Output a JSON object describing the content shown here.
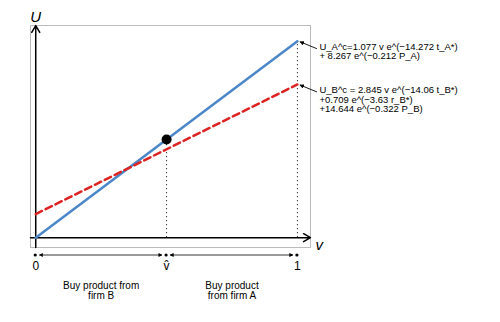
{
  "chart_data": {
    "type": "line",
    "xlabel": "v",
    "ylabel": "U",
    "x": [
      0,
      1.0
    ],
    "series": [
      {
        "color": "#4a86c8",
        "line_style": "solid",
        "values": [
          0.0,
          1.0
        ]
      },
      {
        "color": "#dd2222",
        "line_style": "dashed",
        "values": [
          0.12,
          0.78
        ]
      }
    ],
    "points": [
      {
        "x": 0.5,
        "y": 0.5,
        "color": "black"
      }
    ],
    "guides": [
      {
        "x": 0.5,
        "y": 0.5,
        "line_style": "dotted"
      },
      {
        "x": 1.0,
        "y": 1.0,
        "line_style": "dotted"
      }
    ],
    "xlim": [
      -0.02,
      1.05
    ],
    "ylim": [
      -0.05,
      1.08
    ],
    "xticks": [
      0,
      {
        "value": 0.5,
        "label": "v̂"
      },
      1
    ],
    "tick_labels": "x",
    "grid": false,
    "regions": [
      {
        "text": "Buy product from\nfirm B",
        "from": 0,
        "to": 0.5
      },
      {
        "text": "Buy product\nfrom firm A",
        "from": 0.5,
        "to": 1.0
      }
    ],
    "annotations": [
      {
        "text": "U_A^c=1.077 v e^(−14.272 t_A*)\n+ 8.267 e^(−0.212 P_A)",
        "x": 1.0,
        "y": 1.0
      },
      {
        "text": "U_B^c = 2.845 v e^(−14.06 t_B*)\n+0.709 e^(−3.63 r_B*)\n+14.644 e^(−0.322 P_B)",
        "x": 1.0,
        "y": 0.78
      }
    ]
  }
}
